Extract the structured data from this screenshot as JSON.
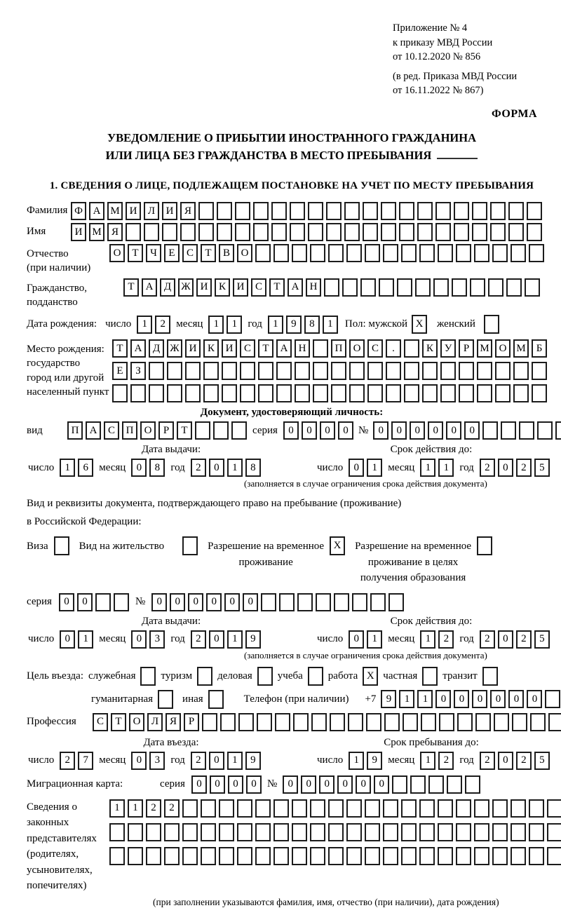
{
  "header": {
    "appendix_line1": "Приложение № 4",
    "appendix_line2": "к приказу МВД России",
    "appendix_line3": "от 10.12.2020 № 856",
    "revision_line1": "(в ред. Приказа МВД России",
    "revision_line2": "от 16.11.2022 № 867)",
    "form_label": "ФОРМА"
  },
  "title": {
    "line1": "УВЕДОМЛЕНИЕ О ПРИБЫТИИ ИНОСТРАННОГО ГРАЖДАНИНА",
    "line2": "ИЛИ ЛИЦА БЕЗ ГРАЖДАНСТВА В МЕСТО ПРЕБЫВАНИЯ"
  },
  "section1_heading": "1. СВЕДЕНИЯ О ЛИЦЕ, ПОДЛЕЖАЩЕМ ПОСТАНОВКЕ НА УЧЕТ ПО МЕСТУ ПРЕБЫВАНИЯ",
  "surname": {
    "label": "Фамилия",
    "value": "ФАМИЛИЯ"
  },
  "first_name": {
    "label": "Имя",
    "value": "ИМЯ"
  },
  "patronymic": {
    "label_line1": "Отчество",
    "label_line2": "(при наличии)",
    "value": "ОТЧЕСТВО"
  },
  "citizenship": {
    "label_line1": "Гражданство,",
    "label_line2": "подданство",
    "value": "ТАДЖИКИСТАН"
  },
  "birth_date": {
    "label": "Дата рождения:",
    "day_label": "число",
    "day": "12",
    "month_label": "месяц",
    "month": "11",
    "year_label": "год",
    "year": "1981"
  },
  "sex": {
    "label": "Пол: мужской",
    "male_mark": "X",
    "female_label": "женский",
    "female_mark": ""
  },
  "birth_place": {
    "label_line1": "Место рождения:",
    "label_line2": "государство",
    "label_line3": "город или другой",
    "label_line4": "населенный пункт",
    "row1": "ТАДЖИКИСТАН ПОС. КУРМОМБ",
    "row2": "ЕЗ",
    "row3": ""
  },
  "identity_doc": {
    "heading": "Документ, удостоверяющий личность:",
    "type_label": "вид",
    "type_value": "ПАСПОРТ",
    "series_label": "серия",
    "series_value": "0000",
    "number_label": "№",
    "number_value": "000000",
    "issue": {
      "heading": "Дата выдачи:",
      "day_label": "число",
      "day": "16",
      "month_label": "месяц",
      "month": "08",
      "year_label": "год",
      "year": "2018"
    },
    "expiry": {
      "heading": "Срок действия до:",
      "day_label": "число",
      "day": "01",
      "month_label": "месяц",
      "month": "11",
      "year_label": "год",
      "year": "2025"
    },
    "note": "(заполняется в случае ограничения срока действия документа)"
  },
  "residence_doc": {
    "intro_line1": "Вид и реквизиты документа, подтверждающего право на пребывание (проживание)",
    "intro_line2": "в Российской Федерации:",
    "visa_label": "Виза",
    "visa_mark": "",
    "residence_permit_label": "Вид на жительство",
    "residence_permit_mark": "",
    "temp_permit_label_line1": "Разрешение на временное",
    "temp_permit_label_line2": "проживание",
    "temp_permit_mark": "X",
    "edu_permit_label_line1": "Разрешение на временное",
    "edu_permit_label_line2": "проживание в целях",
    "edu_permit_label_line3": "получения образования",
    "edu_permit_mark": "",
    "series_label": "серия",
    "series_value": "00",
    "number_label": "№",
    "number_value": "000000",
    "issue": {
      "heading": "Дата выдачи:",
      "day_label": "число",
      "day": "01",
      "month_label": "месяц",
      "month": "03",
      "year_label": "год",
      "year": "2019"
    },
    "expiry": {
      "heading": "Срок действия до:",
      "day_label": "число",
      "day": "01",
      "month_label": "месяц",
      "month": "12",
      "year_label": "год",
      "year": "2025"
    },
    "note": "(заполняется в случае ограничения срока действия документа)"
  },
  "entry_purpose": {
    "label": "Цель въезда:",
    "options_row1": [
      {
        "label": "служебная",
        "mark": ""
      },
      {
        "label": "туризм",
        "mark": ""
      },
      {
        "label": "деловая",
        "mark": ""
      },
      {
        "label": "учеба",
        "mark": ""
      },
      {
        "label": "работа",
        "mark": "X"
      },
      {
        "label": "частная",
        "mark": ""
      },
      {
        "label": "транзит",
        "mark": ""
      }
    ],
    "options_row2": [
      {
        "label": "гуманитарная",
        "mark": ""
      },
      {
        "label": "иная",
        "mark": ""
      }
    ],
    "phone_label": "Телефон (при наличии)",
    "phone_prefix": "+7",
    "phone_value": "911000000"
  },
  "profession": {
    "label": "Профессия",
    "value": "СТОЛЯР"
  },
  "entry_dates": {
    "entry": {
      "heading": "Дата въезда:",
      "day_label": "число",
      "day": "27",
      "month_label": "месяц",
      "month": "03",
      "year_label": "год",
      "year": "2019"
    },
    "stay": {
      "heading": "Срок пребывания до:",
      "day_label": "число",
      "day": "19",
      "month_label": "месяц",
      "month": "12",
      "year_label": "год",
      "year": "2025"
    }
  },
  "migration_card": {
    "label": "Миграционная карта:",
    "series_label": "серия",
    "series_value": "0000",
    "number_label": "№",
    "number_value": "000000"
  },
  "legal_representatives": {
    "label_line1": "Сведения о",
    "label_line2": "законных",
    "label_line3": "представителях",
    "label_line4": "(родителях,",
    "label_line5": "усыновителях,",
    "label_line6": "попечителях)",
    "row1": "1122",
    "row2": "",
    "row3": "",
    "note": "(при заполнении указываются фамилия, имя, отчество (при наличии), дата рождения)"
  }
}
